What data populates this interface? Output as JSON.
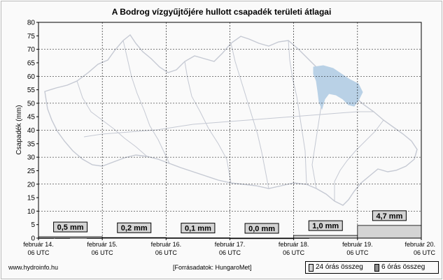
{
  "title": "A Bodrog vízgyűjtőjére hullott csapadék területi átlagai",
  "footer": {
    "site": "www.hydroinfo.hu",
    "source": "[Forrásadatok: HungaroMet]"
  },
  "legend": {
    "daily_label": "24 órás összeg",
    "sixhour_label": "6 órás összeg"
  },
  "colors": {
    "daily_bar": "#d4d4d4",
    "sixhour_bar": "#8c8c8c",
    "label_box": "#d4d4d4",
    "basin": "#b9d1e6",
    "map_lines": "#c5c9d3"
  },
  "chart_data": {
    "type": "bar",
    "title": "A Bodrog vízgyűjtőjére hullott csapadék területi átlagai",
    "ylabel": "Csapadék (mm)",
    "ylim": [
      0,
      80
    ],
    "yticks": [
      0,
      5,
      10,
      15,
      20,
      25,
      30,
      35,
      40,
      45,
      50,
      55,
      60,
      65,
      70,
      75,
      80
    ],
    "grid": true,
    "xlim": [
      0,
      6
    ],
    "xticks": [
      {
        "x": 0,
        "line1": "február 14.",
        "line2": "06 UTC"
      },
      {
        "x": 1,
        "line1": "február 15.",
        "line2": "06 UTC"
      },
      {
        "x": 2,
        "line1": "február 16.",
        "line2": "06 UTC"
      },
      {
        "x": 3,
        "line1": "február 17.",
        "line2": "06 UTC"
      },
      {
        "x": 4,
        "line1": "február 18.",
        "line2": "06 UTC"
      },
      {
        "x": 5,
        "line1": "február 19.",
        "line2": "06 UTC"
      },
      {
        "x": 6,
        "line1": "február 20.",
        "line2": "06 UTC"
      }
    ],
    "series": [
      {
        "name": "24 órás összeg",
        "values": [
          0.5,
          0.2,
          0.1,
          0.0,
          1.0,
          4.7
        ],
        "labels": [
          "0,5 mm",
          "0,2 mm",
          "0,1 mm",
          "0,0 mm",
          "1,0 mm",
          "4,7 mm"
        ]
      },
      {
        "name": "6 órás összeg",
        "values": [
          0.1,
          0.1,
          0.2,
          0.1,
          0.0,
          0.0,
          0.0,
          0.0,
          0.0,
          0.0,
          0.0,
          0.0,
          0.0,
          0.0,
          0.0,
          0.0,
          0.1,
          0.2,
          0.3,
          0.4,
          0.3,
          2.4,
          1.2,
          0.8
        ]
      }
    ]
  }
}
